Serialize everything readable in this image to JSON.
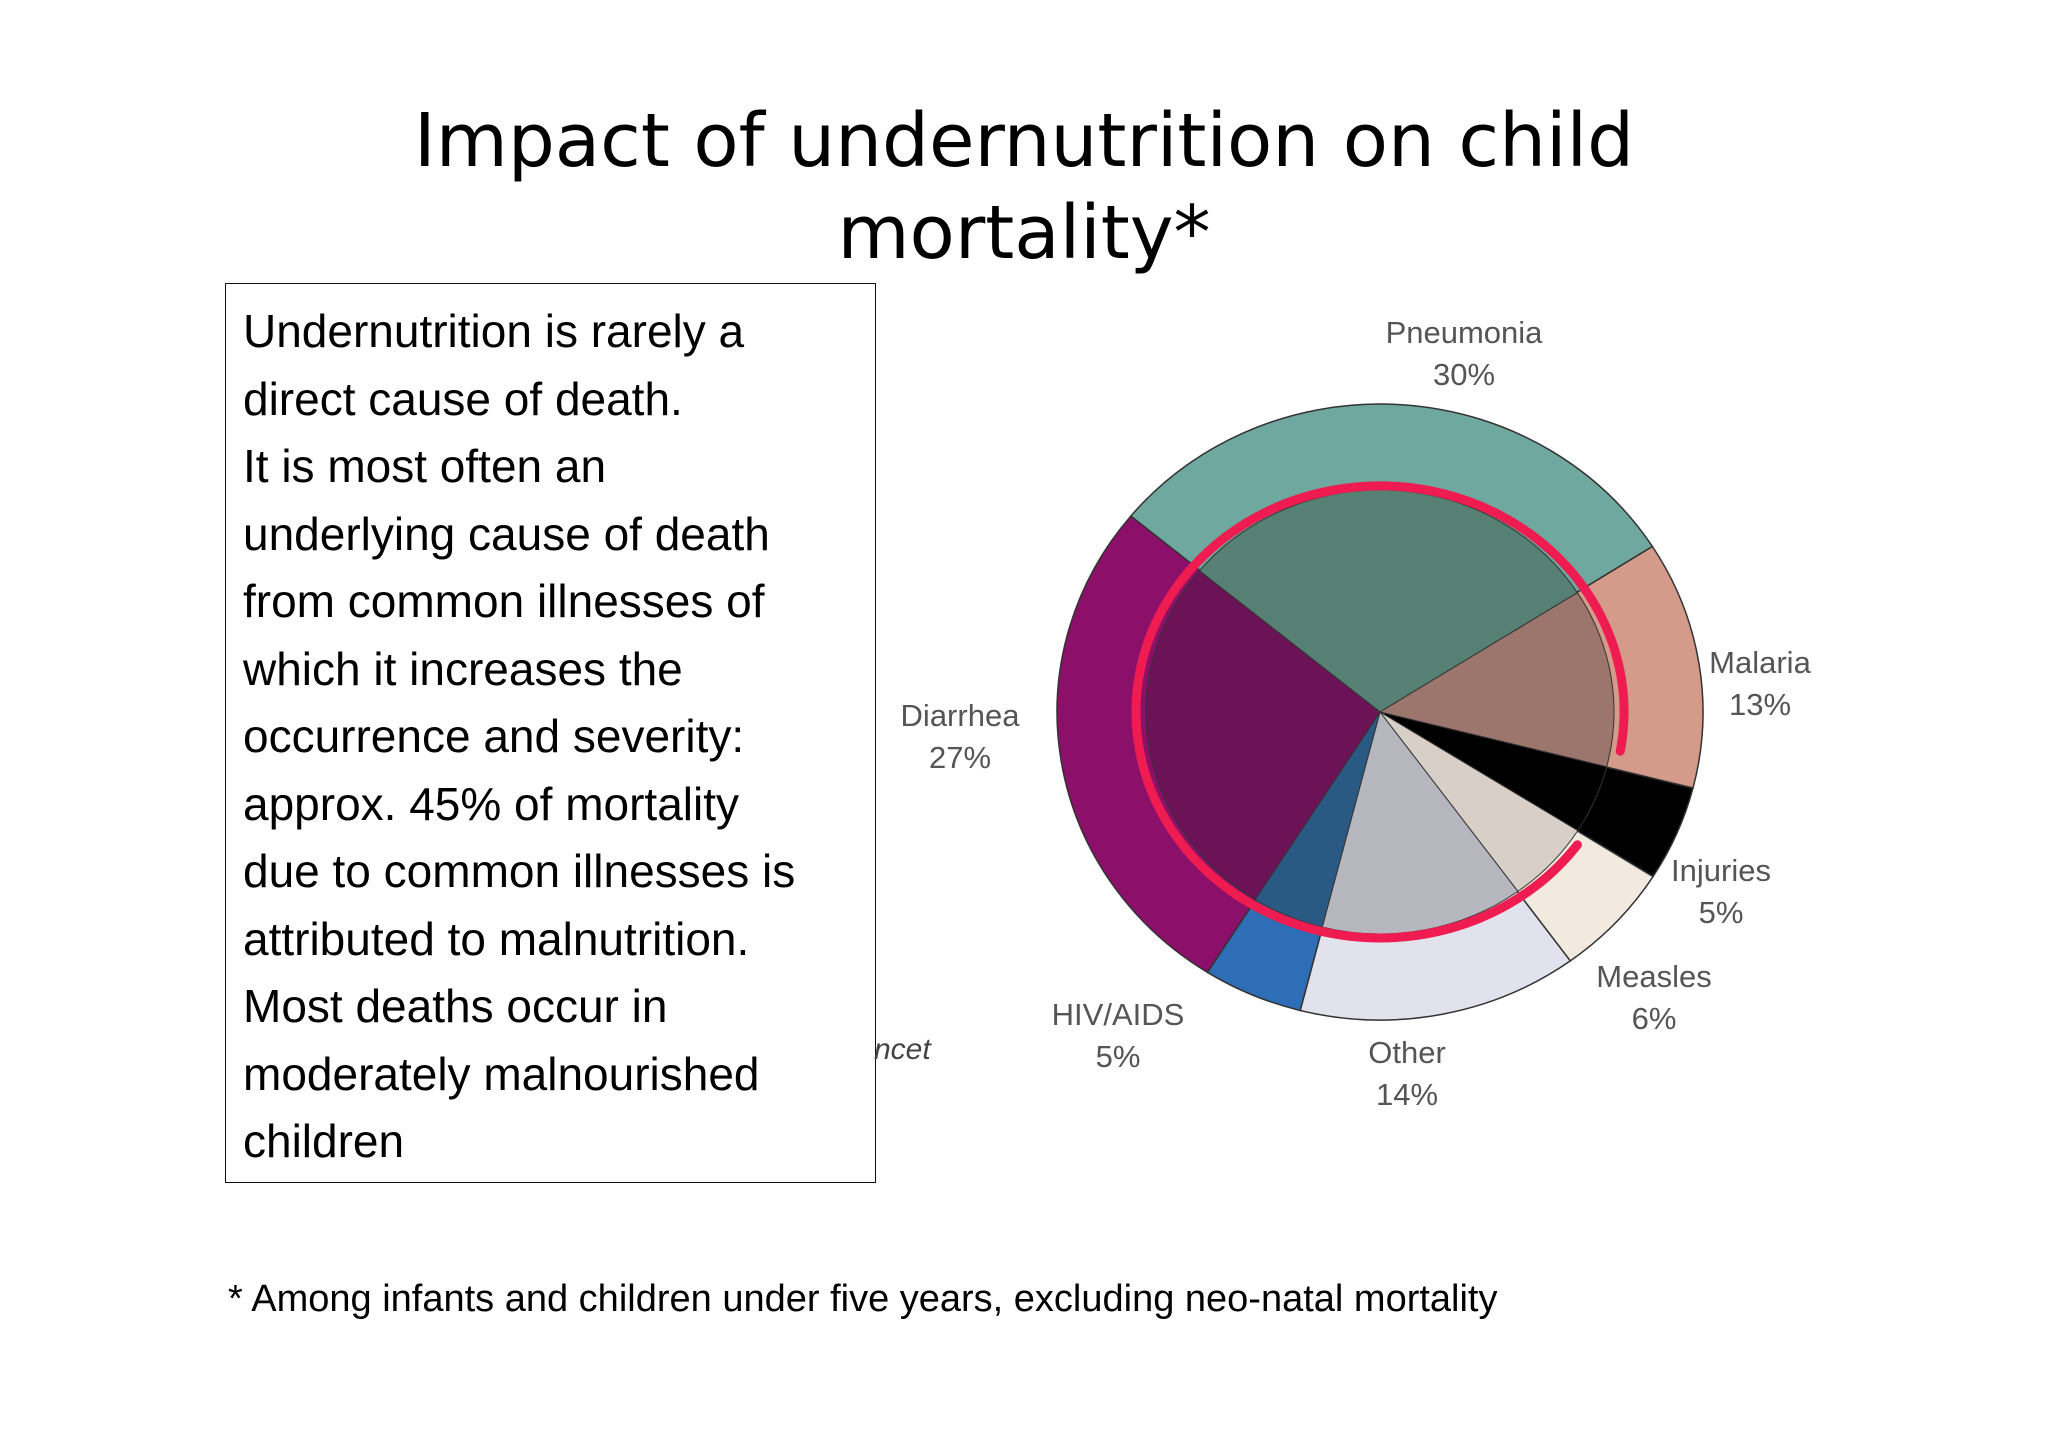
{
  "title": {
    "line1": "Impact of undernutrition on child",
    "line2": "mortality*"
  },
  "textbox": {
    "lines": [
      "Undernutrition is rarely a",
      "direct cause of death.",
      "It is most often an",
      "underlying cause of death",
      "from common illnesses of",
      "which it increases the",
      "occurrence and severity:",
      "approx. 45% of mortality",
      "due to common illnesses is",
      "attributed to malnutrition.",
      "Most deaths occur in",
      "moderately malnourished",
      "children"
    ]
  },
  "footnote": "* Among infants and children under five years, excluding neo-natal mortality",
  "source_fragment": "ncet",
  "chart_data": {
    "type": "pie",
    "slices": [
      {
        "label": "Pneumonia",
        "value": 30,
        "value_label": "30%",
        "color": "#6fa89e",
        "inner_color": "#558073"
      },
      {
        "label": "Malaria",
        "value": 13,
        "value_label": "13%",
        "color": "#d49a8a",
        "inner_color": "#9c756d"
      },
      {
        "label": "Injuries",
        "value": 5,
        "value_label": "5%",
        "color": "#000000",
        "inner_color": "#000000"
      },
      {
        "label": "Measles",
        "value": 6,
        "value_label": "6%",
        "color": "#f2e9df",
        "inner_color": "#d8d0c8"
      },
      {
        "label": "Other",
        "value": 14,
        "value_label": "14%",
        "color": "#e2e2ec",
        "inner_color": "#b6b6be"
      },
      {
        "label": "HIV/AIDS",
        "value": 5,
        "value_label": "5%",
        "color": "#2e6eb7",
        "inner_color": "#2a5a83"
      },
      {
        "label": "Diarrhea",
        "value": 27,
        "value_label": "27%",
        "color": "#8c0f6a",
        "inner_color": "#6b1356"
      }
    ],
    "overlay": {
      "description_color": "#ee1c50",
      "portion_percent": 45
    }
  }
}
